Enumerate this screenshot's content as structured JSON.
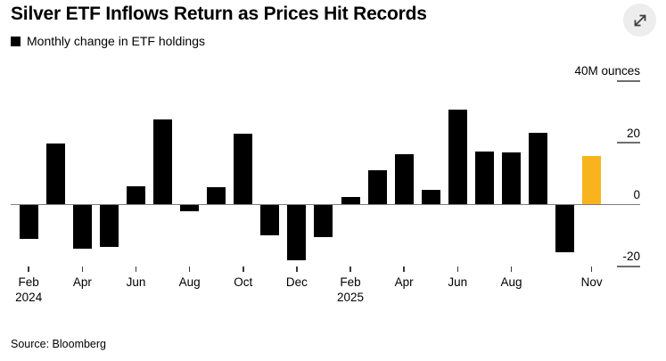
{
  "header": {
    "title": "Silver ETF Inflows Return as Prices Hit Records",
    "legend": {
      "label": "Monthly change in ETF holdings",
      "swatch_color": "#000000"
    },
    "expand_icon": "expand-diagonal-arrows"
  },
  "footer": {
    "source": "Source: Bloomberg"
  },
  "colors": {
    "bar": "#000000",
    "highlight_bar": "#F8B41C",
    "zero_line": "#7d7d7d",
    "tick_stub": "#6e6e6e",
    "x_tick": "#3a3a3a",
    "expand_circle": "#ededed",
    "expand_arrow": "#3f3f3f"
  },
  "chart_data": {
    "type": "bar",
    "title": "Silver ETF Inflows Return as Prices Hit Records",
    "legend_entry": "Monthly change in ETF holdings",
    "unit_label": "40M ounces",
    "ylabel": "M ounces",
    "ylim": [
      -22,
      42
    ],
    "grid": "right-side tick stubs, full-width zero line",
    "legend_position": "top-left",
    "categories": [
      "Feb 2024",
      "Mar 2024",
      "Apr 2024",
      "May 2024",
      "Jun 2024",
      "Jul 2024",
      "Aug 2024",
      "Sep 2024",
      "Oct 2024",
      "Nov 2024",
      "Dec 2024",
      "Jan 2025",
      "Feb 2025",
      "Mar 2025",
      "Apr 2025",
      "May 2025",
      "Jun 2025",
      "Jul 2025",
      "Aug 2025",
      "Sep 2025",
      "Oct 2025",
      "Nov 2025"
    ],
    "values": [
      -10.8,
      19.8,
      -14.1,
      -13.5,
      5.8,
      27.5,
      -1.9,
      5.6,
      23.0,
      -9.8,
      -17.7,
      -10.3,
      2.5,
      11.0,
      16.3,
      4.8,
      30.8,
      17.1,
      16.8,
      23.2,
      -15.3,
      15.6
    ],
    "highlight_index": 21,
    "highlight_category": "Nov 2025",
    "y_ticks": [
      {
        "value": 40,
        "label": "40M ounces"
      },
      {
        "value": 20,
        "label": "20"
      },
      {
        "value": 0,
        "label": "0"
      },
      {
        "value": -20,
        "label": "-20"
      }
    ],
    "x_ticks": [
      {
        "index": 0,
        "label": "Feb",
        "year": "2024"
      },
      {
        "index": 2,
        "label": "Apr"
      },
      {
        "index": 4,
        "label": "Jun"
      },
      {
        "index": 6,
        "label": "Aug"
      },
      {
        "index": 8,
        "label": "Oct"
      },
      {
        "index": 10,
        "label": "Dec"
      },
      {
        "index": 12,
        "label": "Feb",
        "year": "2025"
      },
      {
        "index": 14,
        "label": "Apr"
      },
      {
        "index": 16,
        "label": "Jun"
      },
      {
        "index": 18,
        "label": "Aug"
      },
      {
        "index": 21,
        "label": "Nov"
      }
    ]
  }
}
